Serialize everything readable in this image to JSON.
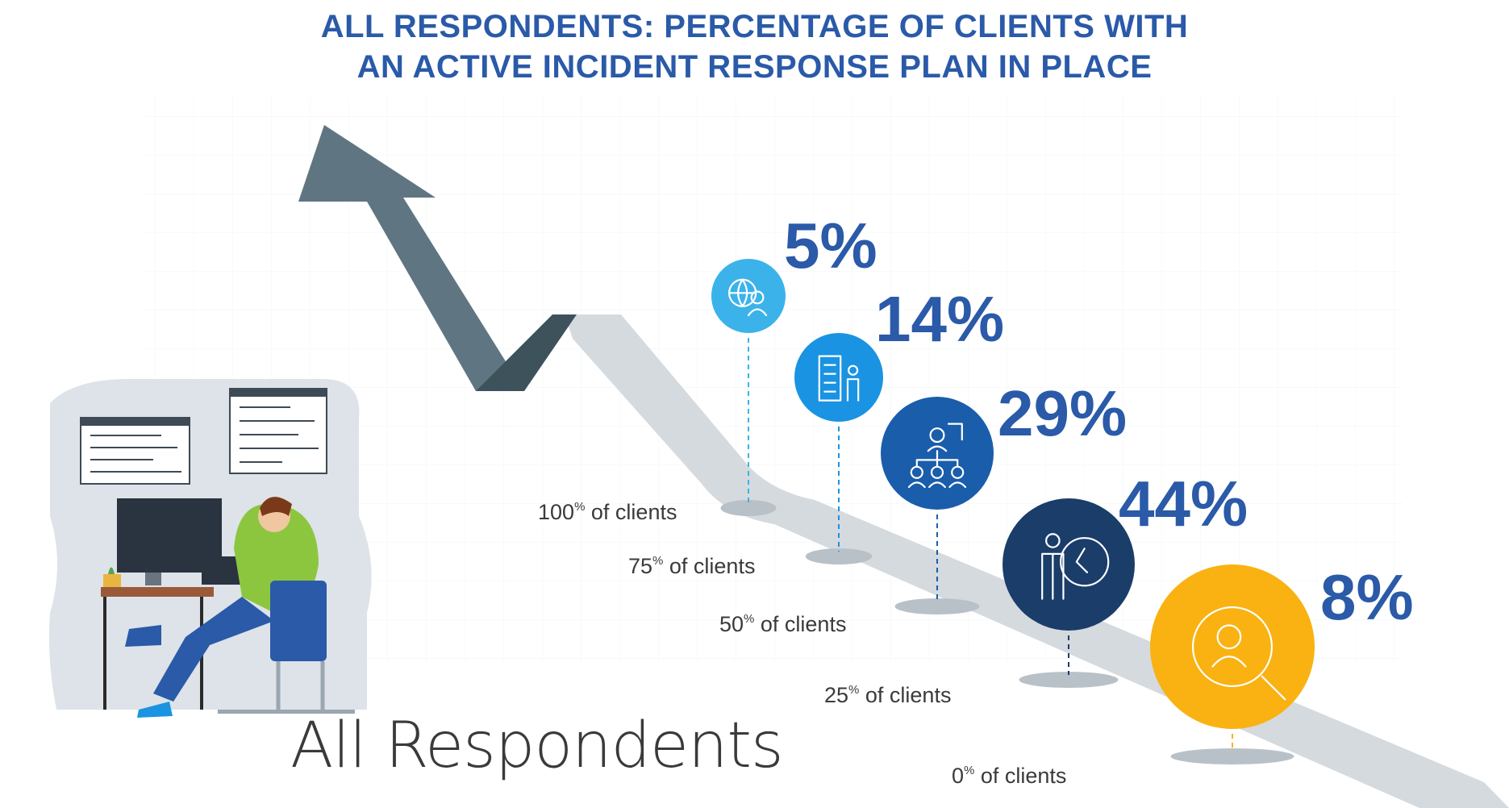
{
  "title_line1": "ALL RESPONDENTS: PERCENTAGE OF CLIENTS WITH",
  "title_line2": "AN ACTIVE INCIDENT RESPONSE PLAN IN PLACE",
  "subtitle": "All Respondents",
  "colors": {
    "title": "#2a5aa8",
    "road": "#d5dade",
    "arrow": "#5f7682",
    "arrow_dark": "#3e525c",
    "pct_text": "#2a5aa8"
  },
  "chart_data": {
    "type": "bar",
    "title": "ALL RESPONDENTS: PERCENTAGE OF CLIENTS WITH AN ACTIVE INCIDENT RESPONSE PLAN IN PLACE",
    "categories": [
      "100% of clients",
      "75% of clients",
      "50% of clients",
      "25% of clients",
      "0% of clients"
    ],
    "values": [
      5,
      14,
      29,
      44,
      8
    ],
    "value_labels": [
      "5%",
      "14%",
      "29%",
      "44%",
      "8%"
    ],
    "circle_colors": [
      "#3bb3ea",
      "#1a93e2",
      "#1a5dab",
      "#1a3d6a",
      "#f9b212"
    ],
    "icons": [
      "globe-person-icon",
      "building-person-icon",
      "org-chart-icon",
      "person-clock-icon",
      "search-person-icon"
    ],
    "category_labels": [
      {
        "num": "100",
        "sup": "%",
        "text": " of clients"
      },
      {
        "num": "75",
        "sup": "%",
        "text": " of clients"
      },
      {
        "num": "50",
        "sup": "%",
        "text": " of clients"
      },
      {
        "num": "25",
        "sup": "%",
        "text": " of clients"
      },
      {
        "num": "0",
        "sup": "%",
        "text": " of clients"
      }
    ],
    "legend": "none",
    "grid": false
  }
}
